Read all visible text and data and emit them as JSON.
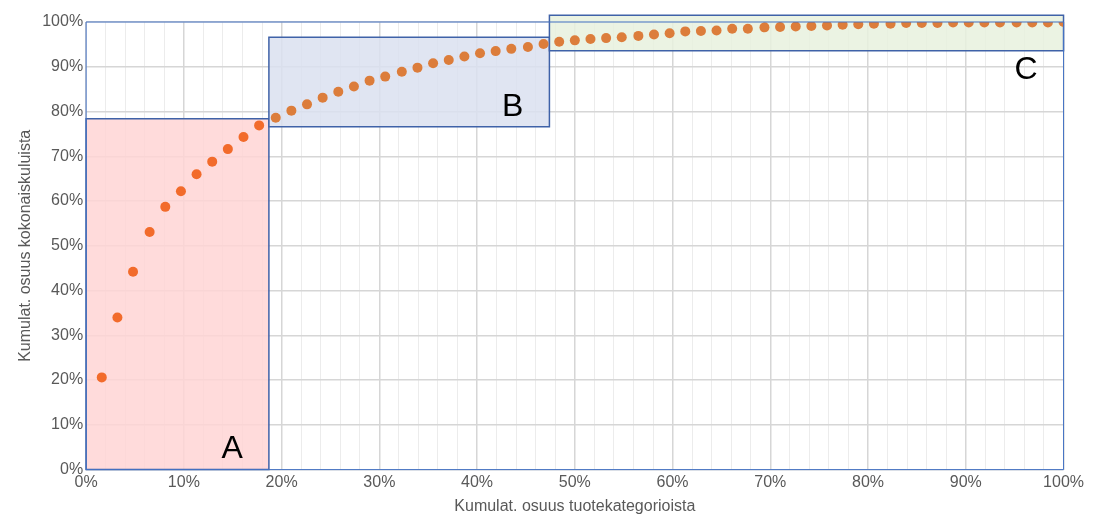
{
  "chart_data": {
    "type": "scatter",
    "xlabel": "Kumulat. osuus tuotekategorioista",
    "ylabel": "Kumulat. osuus kokonaiskuluista",
    "xlim": [
      0,
      100
    ],
    "ylim": [
      0,
      100
    ],
    "xticks": [
      {
        "value": 0,
        "label": "0%"
      },
      {
        "value": 2,
        "label": null
      },
      {
        "value": 4,
        "label": null
      },
      {
        "value": 6,
        "label": null
      },
      {
        "value": 8,
        "label": null
      },
      {
        "value": 10,
        "label": "10%"
      },
      {
        "value": 12,
        "label": null
      },
      {
        "value": 14,
        "label": null
      },
      {
        "value": 16,
        "label": null
      },
      {
        "value": 18,
        "label": null
      },
      {
        "value": 20,
        "label": "20%"
      },
      {
        "value": 22,
        "label": null
      },
      {
        "value": 24,
        "label": null
      },
      {
        "value": 26,
        "label": null
      },
      {
        "value": 28,
        "label": null
      },
      {
        "value": 30,
        "label": "30%"
      },
      {
        "value": 32,
        "label": null
      },
      {
        "value": 34,
        "label": null
      },
      {
        "value": 36,
        "label": null
      },
      {
        "value": 38,
        "label": null
      },
      {
        "value": 40,
        "label": "40%"
      },
      {
        "value": 42,
        "label": null
      },
      {
        "value": 44,
        "label": null
      },
      {
        "value": 46,
        "label": null
      },
      {
        "value": 48,
        "label": null
      },
      {
        "value": 50,
        "label": "50%"
      },
      {
        "value": 52,
        "label": null
      },
      {
        "value": 54,
        "label": null
      },
      {
        "value": 56,
        "label": null
      },
      {
        "value": 58,
        "label": null
      },
      {
        "value": 60,
        "label": "60%"
      },
      {
        "value": 62,
        "label": null
      },
      {
        "value": 64,
        "label": null
      },
      {
        "value": 66,
        "label": null
      },
      {
        "value": 68,
        "label": null
      },
      {
        "value": 70,
        "label": "70%"
      },
      {
        "value": 72,
        "label": null
      },
      {
        "value": 74,
        "label": null
      },
      {
        "value": 76,
        "label": null
      },
      {
        "value": 78,
        "label": null
      },
      {
        "value": 80,
        "label": "80%"
      },
      {
        "value": 82,
        "label": null
      },
      {
        "value": 84,
        "label": null
      },
      {
        "value": 86,
        "label": null
      },
      {
        "value": 88,
        "label": null
      },
      {
        "value": 90,
        "label": "90%"
      },
      {
        "value": 92,
        "label": null
      },
      {
        "value": 94,
        "label": null
      },
      {
        "value": 96,
        "label": null
      },
      {
        "value": 98,
        "label": null
      },
      {
        "value": 100,
        "label": "100%"
      }
    ],
    "yticks": [
      {
        "value": 0,
        "label": "0%"
      },
      {
        "value": 10,
        "label": "10%"
      },
      {
        "value": 20,
        "label": "20%"
      },
      {
        "value": 30,
        "label": "30%"
      },
      {
        "value": 40,
        "label": "40%"
      },
      {
        "value": 50,
        "label": "50%"
      },
      {
        "value": 60,
        "label": "60%"
      },
      {
        "value": 70,
        "label": "70%"
      },
      {
        "value": 80,
        "label": "80%"
      },
      {
        "value": 90,
        "label": "90%"
      },
      {
        "value": 100,
        "label": "100%"
      }
    ],
    "grid": true,
    "marker": "circle",
    "bands": [
      {
        "axis": "x",
        "from": 0,
        "to": 18.7,
        "label": "A",
        "color": "#ffd5d5"
      },
      {
        "axis": "x",
        "from": 18.7,
        "to": 47.4,
        "label": "B",
        "color": "#dae1f0"
      },
      {
        "axis": "x",
        "from": 47.4,
        "to": 100,
        "label": "C",
        "color": "#e8f1de"
      }
    ],
    "series": [
      {
        "color": "#f26b2b",
        "x": [
          1.6,
          3.2,
          4.8,
          6.5,
          8.1,
          9.7,
          11.3,
          12.9,
          14.5,
          16.1,
          17.7
        ],
        "values": [
          20.6,
          34.0,
          44.2,
          53.1,
          58.7,
          62.2,
          66.0,
          68.8,
          71.6,
          74.3,
          76.9
        ]
      },
      {
        "color": "#dc7d3b",
        "x": [
          19.4,
          21.0,
          22.6,
          24.2,
          25.8,
          27.4,
          29.0,
          30.6,
          32.3,
          33.9,
          35.5,
          37.1,
          38.7,
          40.3,
          41.9,
          43.5,
          45.2,
          46.8,
          48.4,
          50.0,
          51.6,
          53.2,
          54.8,
          56.5,
          58.1,
          59.7,
          61.3,
          62.9,
          64.5,
          66.1,
          67.7,
          69.4,
          71.0,
          72.6,
          74.2,
          75.8,
          77.4,
          79.0,
          80.6,
          82.3,
          83.9,
          85.5,
          87.1,
          88.7,
          90.3,
          91.9,
          93.5,
          95.2,
          96.8,
          98.4,
          100.0
        ],
        "values": [
          78.6,
          80.2,
          81.6,
          83.1,
          84.4,
          85.6,
          86.9,
          87.8,
          88.9,
          89.8,
          90.8,
          91.5,
          92.3,
          93.0,
          93.5,
          94.0,
          94.4,
          95.1,
          95.6,
          95.9,
          96.2,
          96.4,
          96.6,
          96.9,
          97.2,
          97.5,
          97.9,
          98.0,
          98.1,
          98.5,
          98.5,
          98.8,
          98.9,
          99.0,
          99.1,
          99.2,
          99.4,
          99.5,
          99.6,
          99.6,
          99.8,
          99.8,
          99.8,
          99.9,
          99.9,
          99.9,
          99.9,
          99.9,
          99.9,
          99.9,
          100.0
        ]
      }
    ]
  }
}
